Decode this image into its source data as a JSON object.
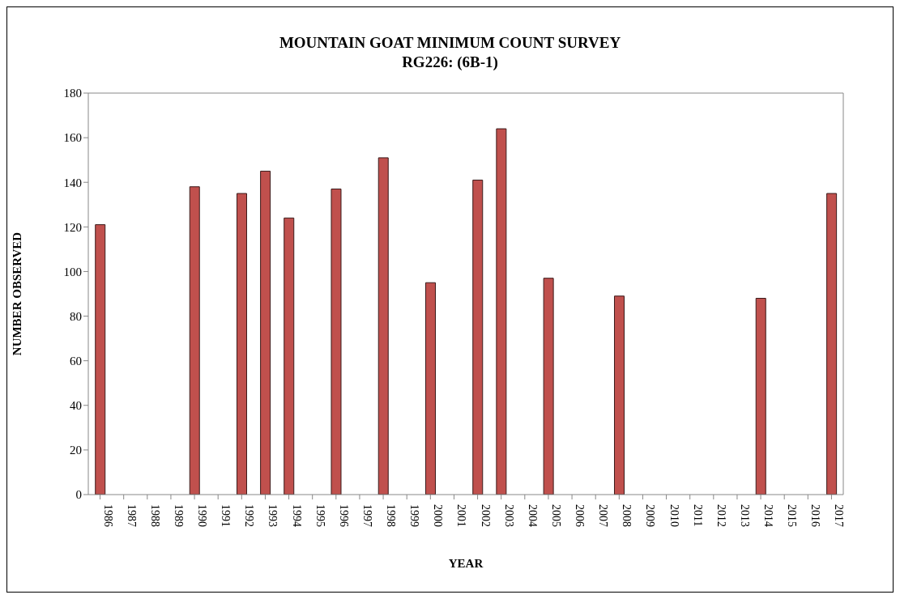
{
  "chart_data": {
    "type": "bar",
    "title": "MOUNTAIN GOAT MINIMUM COUNT SURVEY",
    "subtitle": "RG226: (6B-1)",
    "xlabel": "YEAR",
    "ylabel": "NUMBER OBSERVED",
    "categories": [
      "1986",
      "1987",
      "1988",
      "1989",
      "1990",
      "1991",
      "1992",
      "1993",
      "1994",
      "1995",
      "1996",
      "1997",
      "1998",
      "1999",
      "2000",
      "2001",
      "2002",
      "2003",
      "2004",
      "2005",
      "2006",
      "2007",
      "2008",
      "2009",
      "2010",
      "2011",
      "2012",
      "2013",
      "2014",
      "2015",
      "2016",
      "2017"
    ],
    "values": [
      121,
      null,
      null,
      null,
      138,
      null,
      135,
      145,
      124,
      null,
      137,
      null,
      151,
      null,
      95,
      null,
      141,
      164,
      null,
      97,
      null,
      null,
      89,
      null,
      null,
      null,
      null,
      null,
      88,
      null,
      null,
      135
    ],
    "color": "#c0504d",
    "ylim": [
      0,
      180
    ],
    "yticks": [
      0,
      20,
      40,
      60,
      80,
      100,
      120,
      140,
      160,
      180
    ],
    "grid": false,
    "legend": false
  }
}
